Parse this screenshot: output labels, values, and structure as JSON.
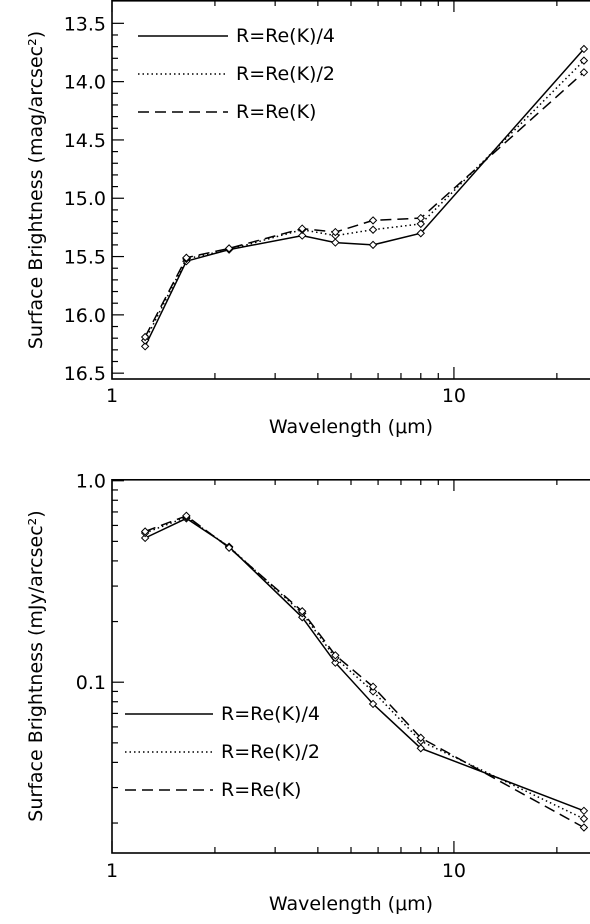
{
  "chart_data": [
    {
      "type": "line",
      "x_scale": "log",
      "y_scale": "linear",
      "y_inverted": true,
      "xlabel": "Wavelength (μm)",
      "ylabel": "Surface Brightness (mag/arcsec²)",
      "xlim": [
        1,
        25
      ],
      "ylim": [
        16.55,
        13.3
      ],
      "x_ticks": [
        {
          "v": 1,
          "label": "1"
        },
        {
          "v": 10,
          "label": "10"
        }
      ],
      "y_ticks": [
        {
          "v": 13.5,
          "label": "13.5"
        },
        {
          "v": 14.0,
          "label": "14.0"
        },
        {
          "v": 14.5,
          "label": "14.5"
        },
        {
          "v": 15.0,
          "label": "15.0"
        },
        {
          "v": 15.5,
          "label": "15.5"
        },
        {
          "v": 16.0,
          "label": "16.0"
        },
        {
          "v": 16.5,
          "label": "16.5"
        }
      ],
      "legend_position": "top-left",
      "x": [
        1.25,
        1.65,
        2.2,
        3.6,
        4.5,
        5.8,
        8.0,
        24.0
      ],
      "series": [
        {
          "name": "R=Re(K)/4",
          "dash": "solid",
          "values": [
            16.27,
            15.54,
            15.44,
            15.32,
            15.38,
            15.4,
            15.3,
            13.72
          ]
        },
        {
          "name": "R=Re(K)/2",
          "dash": "dotted",
          "values": [
            16.22,
            15.52,
            15.44,
            15.27,
            15.32,
            15.27,
            15.22,
            13.82
          ]
        },
        {
          "name": "R=Re(K)",
          "dash": "dashed",
          "values": [
            16.19,
            15.51,
            15.43,
            15.26,
            15.29,
            15.19,
            15.17,
            13.92
          ]
        }
      ]
    },
    {
      "type": "line",
      "x_scale": "log",
      "y_scale": "log",
      "xlabel": "Wavelength (μm)",
      "ylabel": "Surface Brightness (mJy/arcsec²)",
      "xlim": [
        1,
        25
      ],
      "ylim": [
        0.0142,
        1.02
      ],
      "x_ticks": [
        {
          "v": 1,
          "label": "1"
        },
        {
          "v": 10,
          "label": "10"
        }
      ],
      "y_ticks": [
        {
          "v": 1.0,
          "label": "1.0"
        },
        {
          "v": 0.1,
          "label": "0.1"
        }
      ],
      "legend_position": "bottom-left",
      "x": [
        1.25,
        1.65,
        2.2,
        3.6,
        4.5,
        5.8,
        8.0,
        24.0
      ],
      "series": [
        {
          "name": "R=Re(K)/4",
          "dash": "solid",
          "values": [
            0.52,
            0.65,
            0.47,
            0.21,
            0.125,
            0.078,
            0.047,
            0.023
          ]
        },
        {
          "name": "R=Re(K)/2",
          "dash": "dotted",
          "values": [
            0.55,
            0.66,
            0.47,
            0.22,
            0.132,
            0.09,
            0.051,
            0.021
          ]
        },
        {
          "name": "R=Re(K)",
          "dash": "dashed",
          "values": [
            0.56,
            0.67,
            0.465,
            0.225,
            0.136,
            0.095,
            0.053,
            0.019
          ]
        }
      ]
    }
  ]
}
